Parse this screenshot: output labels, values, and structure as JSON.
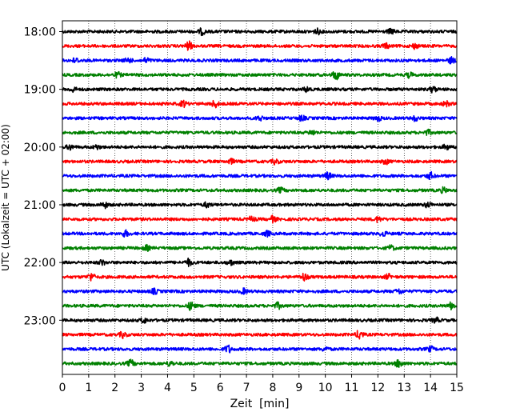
{
  "chart_data": {
    "type": "line",
    "title": "",
    "xlabel": "Zeit  [min]",
    "ylabel": "UTC (Lokalzeit = UTC + 02:00)",
    "xlim": [
      0,
      15
    ],
    "x_ticks": [
      "0",
      "1",
      "2",
      "3",
      "4",
      "5",
      "6",
      "7",
      "8",
      "9",
      "10",
      "11",
      "12",
      "13",
      "14",
      "15"
    ],
    "y_ticks": [
      "18:00",
      "19:00",
      "20:00",
      "21:00",
      "22:00",
      "23:00"
    ],
    "grid": "vertical dotted",
    "trace_colors": [
      "#000000",
      "#ff0000",
      "#0000ff",
      "#008000"
    ],
    "series": [
      {
        "start": "18:00",
        "color": "#000000",
        "bursts": [
          [
            5.3,
            0.6
          ],
          [
            9.7,
            0.5
          ],
          [
            12.5,
            0.5
          ]
        ]
      },
      {
        "start": "18:15",
        "color": "#ff0000",
        "bursts": [
          [
            4.8,
            0.9
          ],
          [
            12.3,
            0.5
          ],
          [
            13.4,
            0.5
          ]
        ]
      },
      {
        "start": "18:30",
        "color": "#0000ff",
        "bursts": [
          [
            0.5,
            0.5
          ],
          [
            2.5,
            0.5
          ],
          [
            3.2,
            0.5
          ],
          [
            14.8,
            0.6
          ]
        ]
      },
      {
        "start": "18:45",
        "color": "#008000",
        "bursts": [
          [
            2.1,
            0.5
          ],
          [
            10.4,
            1.0
          ],
          [
            13.2,
            0.5
          ]
        ]
      },
      {
        "start": "19:00",
        "color": "#000000",
        "bursts": [
          [
            0.4,
            0.5
          ],
          [
            9.3,
            0.5
          ],
          [
            14.1,
            0.6
          ]
        ]
      },
      {
        "start": "19:15",
        "color": "#ff0000",
        "bursts": [
          [
            4.6,
            0.6
          ],
          [
            5.8,
            0.7
          ],
          [
            14.6,
            0.5
          ]
        ]
      },
      {
        "start": "19:30",
        "color": "#0000ff",
        "bursts": [
          [
            7.5,
            0.5
          ],
          [
            9.1,
            0.5
          ],
          [
            12.0,
            0.5
          ],
          [
            13.4,
            0.5
          ]
        ]
      },
      {
        "start": "19:45",
        "color": "#008000",
        "bursts": [
          [
            9.5,
            0.5
          ],
          [
            13.9,
            0.5
          ]
        ]
      },
      {
        "start": "20:00",
        "color": "#000000",
        "bursts": [
          [
            0.3,
            0.5
          ],
          [
            1.3,
            0.4
          ],
          [
            14.6,
            0.5
          ]
        ]
      },
      {
        "start": "20:15",
        "color": "#ff0000",
        "bursts": [
          [
            6.4,
            0.5
          ],
          [
            8.1,
            0.5
          ],
          [
            12.3,
            0.5
          ]
        ]
      },
      {
        "start": "20:30",
        "color": "#0000ff",
        "bursts": [
          [
            10.1,
            0.7
          ],
          [
            14.0,
            0.7
          ]
        ]
      },
      {
        "start": "20:45",
        "color": "#008000",
        "bursts": [
          [
            8.3,
            0.5
          ],
          [
            14.5,
            0.5
          ]
        ]
      },
      {
        "start": "21:00",
        "color": "#000000",
        "bursts": [
          [
            1.6,
            0.6
          ],
          [
            5.5,
            0.5
          ],
          [
            13.9,
            0.5
          ]
        ]
      },
      {
        "start": "21:15",
        "color": "#ff0000",
        "bursts": [
          [
            7.2,
            0.5
          ],
          [
            8.0,
            0.6
          ],
          [
            12.0,
            0.5
          ]
        ]
      },
      {
        "start": "21:30",
        "color": "#0000ff",
        "bursts": [
          [
            2.4,
            0.6
          ],
          [
            7.8,
            0.5
          ],
          [
            12.2,
            0.5
          ]
        ]
      },
      {
        "start": "21:45",
        "color": "#008000",
        "bursts": [
          [
            3.2,
            0.5
          ],
          [
            12.5,
            0.5
          ]
        ]
      },
      {
        "start": "22:00",
        "color": "#000000",
        "bursts": [
          [
            1.5,
            0.5
          ],
          [
            4.8,
            0.7
          ],
          [
            6.4,
            0.5
          ]
        ]
      },
      {
        "start": "22:15",
        "color": "#ff0000",
        "bursts": [
          [
            1.1,
            0.8
          ],
          [
            9.2,
            0.8
          ],
          [
            12.4,
            0.5
          ]
        ]
      },
      {
        "start": "22:30",
        "color": "#0000ff",
        "bursts": [
          [
            3.5,
            0.5
          ],
          [
            6.9,
            0.5
          ],
          [
            12.8,
            0.5
          ]
        ]
      },
      {
        "start": "22:45",
        "color": "#008000",
        "bursts": [
          [
            4.9,
            0.9
          ],
          [
            8.2,
            0.6
          ],
          [
            14.8,
            0.7
          ]
        ]
      },
      {
        "start": "23:00",
        "color": "#000000",
        "bursts": [
          [
            3.1,
            0.5
          ],
          [
            14.2,
            0.5
          ]
        ]
      },
      {
        "start": "23:15",
        "color": "#ff0000",
        "bursts": [
          [
            2.3,
            0.6
          ],
          [
            11.3,
            1.0
          ]
        ]
      },
      {
        "start": "23:30",
        "color": "#0000ff",
        "bursts": [
          [
            6.3,
            0.8
          ],
          [
            10.0,
            0.4
          ],
          [
            14.0,
            0.5
          ]
        ]
      },
      {
        "start": "23:45",
        "color": "#008000",
        "bursts": [
          [
            2.6,
            0.7
          ],
          [
            4.1,
            0.5
          ],
          [
            12.8,
            0.9
          ]
        ]
      }
    ]
  }
}
